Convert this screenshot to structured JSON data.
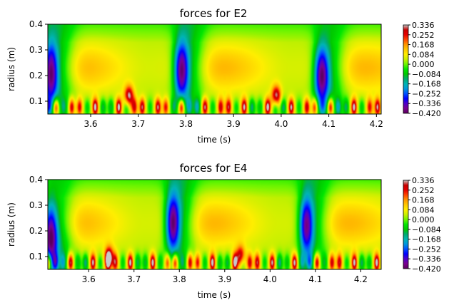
{
  "chart_data": [
    {
      "type": "heatmap",
      "title": "forces for E2",
      "xlabel": "time (s)",
      "ylabel": "radius (m)",
      "xlim": [
        3.51,
        4.21
      ],
      "ylim": [
        0.05,
        0.4
      ],
      "xticks": [
        "3.6",
        "3.7",
        "3.8",
        "3.9",
        "4.0",
        "4.1",
        "4.2"
      ],
      "xtick_values": [
        3.6,
        3.7,
        3.8,
        3.9,
        4.0,
        4.1,
        4.2
      ],
      "yticks": [
        "0.1",
        "0.2",
        "0.3",
        "0.4"
      ],
      "ytick_values": [
        0.1,
        0.2,
        0.3,
        0.4
      ],
      "colorbar": {
        "min": -0.42,
        "max": 0.336,
        "tick_values": [
          0.336,
          0.252,
          0.168,
          0.084,
          0.0,
          -0.084,
          -0.168,
          -0.252,
          -0.336,
          -0.42
        ],
        "tick_labels": [
          "0.336",
          "0.252",
          "0.168",
          "0.084",
          "0.000",
          "−0.084",
          "−0.168",
          "−0.252",
          "−0.336",
          "−0.420"
        ]
      },
      "features": [
        {
          "t": 3.515,
          "r": 0.21,
          "value": -0.4
        },
        {
          "t": 3.79,
          "r": 0.22,
          "value": -0.38
        },
        {
          "t": 4.085,
          "r": 0.2,
          "value": -0.38
        },
        {
          "t": 3.68,
          "r": 0.12,
          "value": 0.3
        },
        {
          "t": 3.99,
          "r": 0.12,
          "value": 0.3
        }
      ]
    },
    {
      "type": "heatmap",
      "title": "forces for E4",
      "xlabel": "time (s)",
      "ylabel": "radius (m)",
      "xlim": [
        3.51,
        4.245
      ],
      "ylim": [
        0.05,
        0.4
      ],
      "xticks": [
        "3.6",
        "3.7",
        "3.8",
        "3.9",
        "4.0",
        "4.1",
        "4.2"
      ],
      "xtick_values": [
        3.6,
        3.7,
        3.8,
        3.9,
        4.0,
        4.1,
        4.2
      ],
      "yticks": [
        "0.1",
        "0.2",
        "0.3",
        "0.4"
      ],
      "ytick_values": [
        0.1,
        0.2,
        0.3,
        0.4
      ],
      "colorbar": {
        "min": -0.42,
        "max": 0.336,
        "tick_values": [
          0.336,
          0.252,
          0.168,
          0.084,
          0.0,
          -0.084,
          -0.168,
          -0.252,
          -0.336,
          -0.42
        ],
        "tick_labels": [
          "0.336",
          "0.252",
          "0.168",
          "0.084",
          "0.000",
          "−0.084",
          "−0.168",
          "−0.252",
          "−0.336",
          "−0.420"
        ]
      },
      "features": [
        {
          "t": 3.515,
          "r": 0.18,
          "value": -0.4
        },
        {
          "t": 3.785,
          "r": 0.23,
          "value": -0.38
        },
        {
          "t": 4.08,
          "r": 0.22,
          "value": -0.36
        },
        {
          "t": 3.645,
          "r": 0.1,
          "value": 0.28
        },
        {
          "t": 3.935,
          "r": 0.1,
          "value": 0.28
        }
      ]
    }
  ]
}
